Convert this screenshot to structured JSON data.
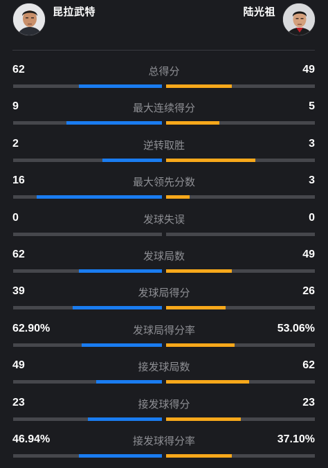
{
  "players": {
    "left": {
      "name": "昆拉武特"
    },
    "right": {
      "name": "陆光祖"
    }
  },
  "colors": {
    "background": "#1b1c20",
    "left_bar": "#1a7cf0",
    "right_bar": "#f7a81b",
    "track": "#46474c",
    "label": "#8e8f94"
  },
  "stats": [
    {
      "label": "总得分",
      "left": "62",
      "right": "49",
      "left_frac": 0.56,
      "right_frac": 0.44
    },
    {
      "label": "最大连续得分",
      "left": "9",
      "right": "5",
      "left_frac": 0.64,
      "right_frac": 0.36
    },
    {
      "label": "逆转取胜",
      "left": "2",
      "right": "3",
      "left_frac": 0.4,
      "right_frac": 0.6
    },
    {
      "label": "最大领先分数",
      "left": "16",
      "right": "3",
      "left_frac": 0.84,
      "right_frac": 0.16
    },
    {
      "label": "发球失误",
      "left": "0",
      "right": "0",
      "left_frac": 0,
      "right_frac": 0
    },
    {
      "label": "发球局数",
      "left": "62",
      "right": "49",
      "left_frac": 0.56,
      "right_frac": 0.44
    },
    {
      "label": "发球局得分",
      "left": "39",
      "right": "26",
      "left_frac": 0.6,
      "right_frac": 0.4
    },
    {
      "label": "发球局得分率",
      "left": "62.90%",
      "right": "53.06%",
      "left_frac": 0.54,
      "right_frac": 0.46
    },
    {
      "label": "接发球局数",
      "left": "49",
      "right": "62",
      "left_frac": 0.44,
      "right_frac": 0.56
    },
    {
      "label": "接发球得分",
      "left": "23",
      "right": "23",
      "left_frac": 0.5,
      "right_frac": 0.5
    },
    {
      "label": "接发球得分率",
      "left": "46.94%",
      "right": "37.10%",
      "left_frac": 0.56,
      "right_frac": 0.44
    }
  ]
}
